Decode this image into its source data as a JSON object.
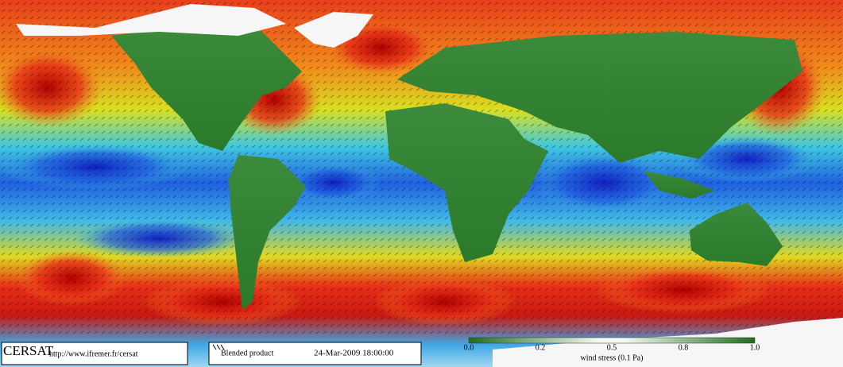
{
  "footer": {
    "brand": "CERSAT",
    "url": "http://www.ifremer.fr/cersat",
    "product": "Blended product",
    "timestamp": "24-Mar-2009 18:00:00"
  },
  "colorbar": {
    "labels": [
      "0.0",
      "0.2",
      "0.5",
      "0.8",
      "1.0"
    ],
    "title": "wind stress (0.1 Pa)"
  }
}
